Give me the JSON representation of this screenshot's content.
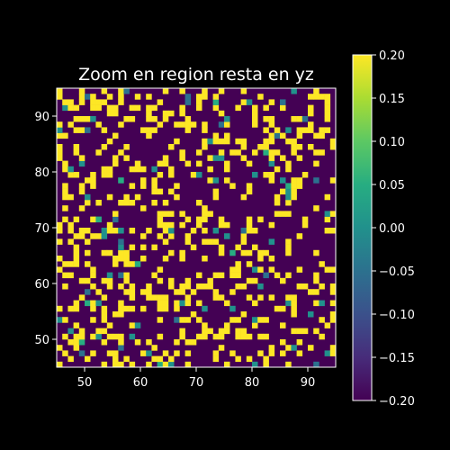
{
  "chart_data": {
    "type": "heatmap",
    "title": "Zoom en region resta en yz",
    "xlabel": "",
    "ylabel": "",
    "xlim": [
      45,
      95
    ],
    "ylim": [
      45,
      95
    ],
    "x_ticks": [
      50,
      60,
      70,
      80,
      90
    ],
    "y_ticks": [
      50,
      60,
      70,
      80,
      90
    ],
    "x_tick_labels": [
      "50",
      "60",
      "70",
      "80",
      "90"
    ],
    "y_tick_labels": [
      "50",
      "60",
      "70",
      "80",
      "90"
    ],
    "colormap": "viridis",
    "color_range": [
      -0.2,
      0.2
    ],
    "colorbar_ticks": [
      0.2,
      0.15,
      0.1,
      0.05,
      0.0,
      -0.05,
      -0.1,
      -0.15,
      -0.2
    ],
    "colorbar_tick_labels": [
      "0.20",
      "0.15",
      "0.10",
      "0.05",
      "0.00",
      "−0.05",
      "−0.10",
      "−0.15",
      "−0.20"
    ],
    "grid": false,
    "cell_values": {
      "background": -0.2,
      "high": 0.2,
      "mid": 0.0,
      "mid_low": -0.05,
      "mid_high": 0.05
    },
    "colors": {
      "background": "#000000",
      "text": "#ffffff",
      "low": "#440154",
      "high": "#fde725",
      "mid": "#21918c"
    }
  }
}
